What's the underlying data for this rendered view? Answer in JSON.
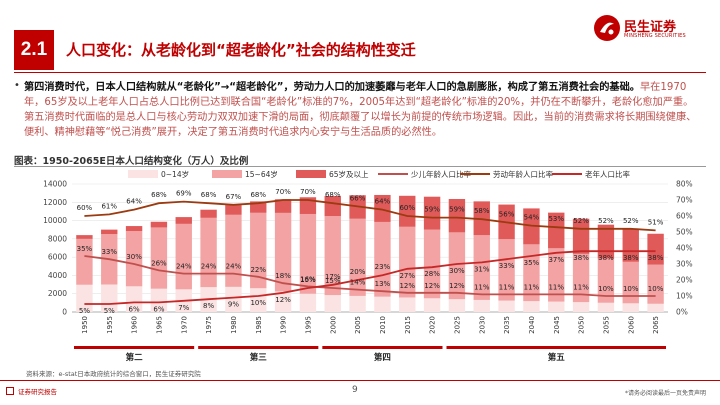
{
  "header": {
    "section_number": "2.1",
    "title": "人口变化：从老龄化到“超老龄化”社会的结构性变迁"
  },
  "brand": {
    "name": "民生证券",
    "en": "MINSHENG SECURITIES"
  },
  "paragraph": {
    "bullet": "•",
    "bold": "第四消费时代，日本人口结构就从“老龄化”→“超老龄化”，劳动力人口的加速萎靡与老年人口的急剧膨胀，构成了第五消费社会的基础。",
    "rest": "早在1970年，65岁及以上老年人口占总人口比例已达到联合国“老龄化”标准的7%，2005年达到“超老龄化”标准的20%，并仍在不断攀升，老龄化愈加严重。第五消费时代面临的是总人口与核心劳动力双双加速下滑的局面，彻底颠覆了以增长为前提的传统市场逻辑。因此，当前的消费需求将长期围绕健康、便利、精神慰藉等“悦己消费”展开，决定了第五消费时代追求内心安宁与生活品质的必然性。"
  },
  "figure_caption": "图表：1950-2065E日本人口结构变化（万人）及比例",
  "source": "资料来源：e-stat日本政府统计的综合窗口，民生证券研究院",
  "footer": {
    "left": "证券研究报告",
    "page": "9",
    "right": "*请务必阅读最后一页免责声明"
  },
  "colors": {
    "brand_red": "#c00000",
    "age_0_14": "#fbe3e3",
    "age_15_64": "#f3a3a3",
    "age_65_plus": "#e15a5a",
    "line_child": "#c0504d",
    "line_working": "#9c3a10",
    "line_elderly": "#c62828",
    "era_bar": "#c00000"
  },
  "chart_data": {
    "type": "bar",
    "stacked": true,
    "categories": [
      "1950",
      "1955",
      "1960",
      "1965",
      "1970",
      "1975",
      "1980",
      "1985",
      "1990",
      "1995",
      "2000",
      "2005",
      "2010",
      "2015",
      "2020",
      "2025",
      "2030",
      "2035",
      "2040",
      "2045",
      "2050",
      "2055",
      "2060",
      "2065"
    ],
    "series": [
      {
        "name": "0~14岁",
        "type": "bar",
        "axis": "left",
        "values": [
          2980,
          3010,
          2810,
          2550,
          2480,
          2720,
          2750,
          2600,
          2250,
          2000,
          1850,
          1760,
          1680,
          1590,
          1500,
          1400,
          1320,
          1250,
          1190,
          1140,
          1080,
          1010,
          950,
          900
        ]
      },
      {
        "name": "15~64岁",
        "type": "bar",
        "axis": "left",
        "values": [
          5020,
          5520,
          6050,
          6700,
          7160,
          7580,
          7880,
          8250,
          8590,
          8720,
          8640,
          8440,
          8170,
          7730,
          7510,
          7310,
          7080,
          6720,
          6210,
          5830,
          5280,
          4840,
          4540,
          4280
        ]
      },
      {
        "name": "65岁及以上",
        "type": "bar",
        "axis": "left",
        "values": [
          410,
          480,
          540,
          620,
          740,
          890,
          1060,
          1250,
          1490,
          1830,
          2200,
          2570,
          2950,
          3390,
          3600,
          3650,
          3700,
          3780,
          3930,
          3900,
          3840,
          3700,
          3540,
          3380
        ]
      },
      {
        "name": "少儿年龄人口比率",
        "type": "line",
        "axis": "right",
        "values": [
          35,
          33,
          30,
          26,
          24,
          24,
          24,
          22,
          18,
          16,
          15,
          14,
          13,
          12,
          12,
          12,
          11,
          11,
          11,
          11,
          11,
          10,
          10,
          10
        ]
      },
      {
        "name": "劳动年龄人口比率",
        "type": "line",
        "axis": "right",
        "values": [
          60,
          61,
          64,
          68,
          69,
          68,
          67,
          68,
          70,
          70,
          68,
          66,
          64,
          60,
          59,
          59,
          58,
          56,
          54,
          53,
          52,
          52,
          52,
          51
        ]
      },
      {
        "name": "老年人口比率",
        "type": "line",
        "axis": "right",
        "values": [
          5,
          5,
          6,
          6,
          7,
          8,
          9,
          10,
          12,
          15,
          17,
          20,
          23,
          27,
          28,
          30,
          31,
          33,
          35,
          37,
          38,
          38,
          38,
          38
        ]
      }
    ],
    "y_left": {
      "min": 0,
      "max": 14000,
      "ticks": [
        "0",
        "2000",
        "4000",
        "6000",
        "8000",
        "10000",
        "12000",
        "14000"
      ]
    },
    "y_right": {
      "min": 0,
      "max": 80,
      "ticks": [
        "0%",
        "10%",
        "20%",
        "30%",
        "40%",
        "50%",
        "60%",
        "70%",
        "80%"
      ]
    },
    "label_suffix": "%",
    "legend_position": "top",
    "eras": [
      {
        "label": "第二",
        "from": "1950",
        "to": "1970"
      },
      {
        "label": "第三",
        "from": "1975",
        "to": "1995"
      },
      {
        "label": "第四",
        "from": "2000",
        "to": "2020"
      },
      {
        "label": "第五",
        "from": "2025",
        "to": "2065"
      }
    ]
  }
}
